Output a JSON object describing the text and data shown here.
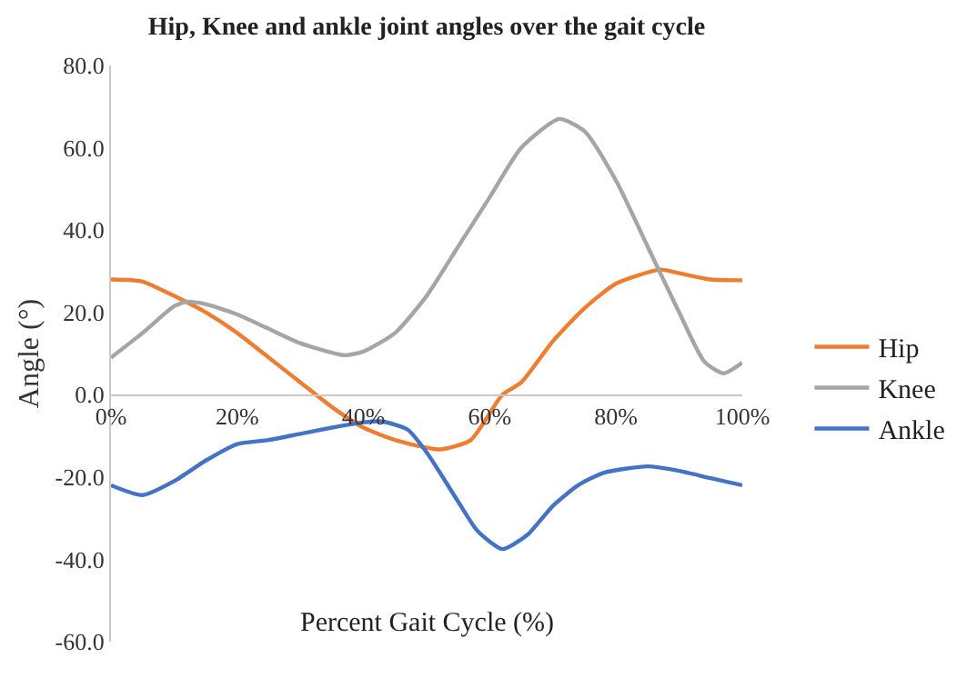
{
  "chart_data": {
    "type": "line",
    "title": "Hip, Knee and ankle joint angles over the gait cycle",
    "xlabel": "Percent Gait Cycle (%)",
    "ylabel": "Angle (°)",
    "xlim": [
      0,
      100
    ],
    "xticks": [
      {
        "value": 0,
        "label": "0%"
      },
      {
        "value": 20,
        "label": "20%"
      },
      {
        "value": 40,
        "label": "40%"
      },
      {
        "value": 60,
        "label": "60%"
      },
      {
        "value": 80,
        "label": "80%"
      },
      {
        "value": 100,
        "label": "100%"
      }
    ],
    "ylim": [
      -60,
      80
    ],
    "yticks": [
      {
        "value": -60,
        "label": "-60.0"
      },
      {
        "value": -40,
        "label": "-40.0"
      },
      {
        "value": -20,
        "label": "-20.0"
      },
      {
        "value": 0,
        "label": "0.0"
      },
      {
        "value": 20,
        "label": "20.0"
      },
      {
        "value": 40,
        "label": "40.0"
      },
      {
        "value": 60,
        "label": "60.0"
      },
      {
        "value": 80,
        "label": "80.0"
      }
    ],
    "legend": "right",
    "marker": "none",
    "line_style": "solid",
    "series": [
      {
        "name": "Hip",
        "color": "#ed7d31",
        "x": [
          0,
          5,
          10,
          15,
          20,
          25,
          30,
          35,
          40,
          45,
          52,
          57,
          62,
          65,
          70,
          75,
          80,
          87,
          90,
          95,
          100
        ],
        "values": [
          28,
          27.5,
          24,
          20,
          15,
          9,
          3,
          -3,
          -8,
          -11,
          -13.3,
          -11,
          0,
          3,
          13,
          21,
          27,
          30.4,
          29.5,
          28,
          27.8
        ]
      },
      {
        "name": "Knee",
        "color": "#a5a5a5",
        "x": [
          0,
          5,
          10,
          12,
          15,
          20,
          25,
          30,
          37,
          40,
          45,
          50,
          55,
          60,
          65,
          71,
          75,
          80,
          85,
          90,
          94,
          97,
          100
        ],
        "values": [
          9,
          15,
          21.5,
          22.6,
          22,
          19.5,
          16,
          12.5,
          9.6,
          10.5,
          15,
          24,
          36,
          48,
          60,
          67,
          64,
          52,
          36,
          20,
          8,
          5.2,
          7.8
        ]
      },
      {
        "name": "Ankle",
        "color": "#4472c4",
        "x": [
          0,
          5,
          10,
          15,
          20,
          25,
          30,
          35,
          40,
          43,
          47,
          50,
          55,
          58,
          62,
          66,
          70,
          74,
          78,
          85,
          90,
          95,
          100
        ],
        "values": [
          -22,
          -24.4,
          -21,
          -16,
          -12,
          -11,
          -9.5,
          -8,
          -6.7,
          -6.5,
          -8.5,
          -14,
          -26,
          -33,
          -37.5,
          -34,
          -27,
          -22,
          -19,
          -17.4,
          -18.5,
          -20.3,
          -22
        ]
      }
    ]
  }
}
